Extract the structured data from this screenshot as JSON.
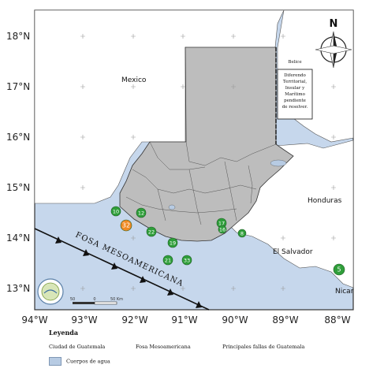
{
  "latitude_labels": [
    "18°N",
    "17°N",
    "16°N",
    "15°N",
    "14°N",
    "13°N"
  ],
  "longitude_labels": [
    "94°W",
    "93°W",
    "92°W",
    "91°W",
    "90°W",
    "89°W",
    "88°W"
  ],
  "countries": {
    "mexico": "Mexico",
    "honduras": "Honduras",
    "el_salvador": "El Salvador",
    "nicaragua": "Nicar"
  },
  "belize": {
    "title": "Belice",
    "note": [
      "Diferendo",
      "Territorial,",
      "Insular y",
      "Marítimo",
      "pendiente",
      "de resolver."
    ]
  },
  "trench_label": "FOSA MESOAMERICANA",
  "north_arrow": "N",
  "scale_bar": [
    "50",
    "0",
    "50 Km"
  ],
  "points": [
    {
      "label": "10",
      "color": "#2f9e3a"
    },
    {
      "label": "12",
      "color": "#2f9e3a"
    },
    {
      "label": "32",
      "color": "#f08a24"
    },
    {
      "label": "22",
      "color": "#2f9e3a"
    },
    {
      "label": "19",
      "color": "#2f9e3a"
    },
    {
      "label": "21",
      "color": "#2f9e3a"
    },
    {
      "label": "33",
      "color": "#2f9e3a"
    },
    {
      "label": "17",
      "color": "#2f9e3a"
    },
    {
      "label": "16",
      "color": "#2f9e3a"
    },
    {
      "label": "8",
      "color": "#2f9e3a"
    },
    {
      "label": "5",
      "color": "#2f9e3a"
    }
  ],
  "legend": {
    "title": "Leyenda",
    "items": [
      "Ciudad de Guatemala",
      "Fosa Mesoamericana",
      "Principales fallas de Guatemala",
      "Cuerpos de agua"
    ]
  },
  "colors": {
    "sea": "#c6d7ec",
    "land": "#ffffff",
    "guatemala": "#bdbdbd",
    "water_bodies": "#b7cbe3"
  }
}
